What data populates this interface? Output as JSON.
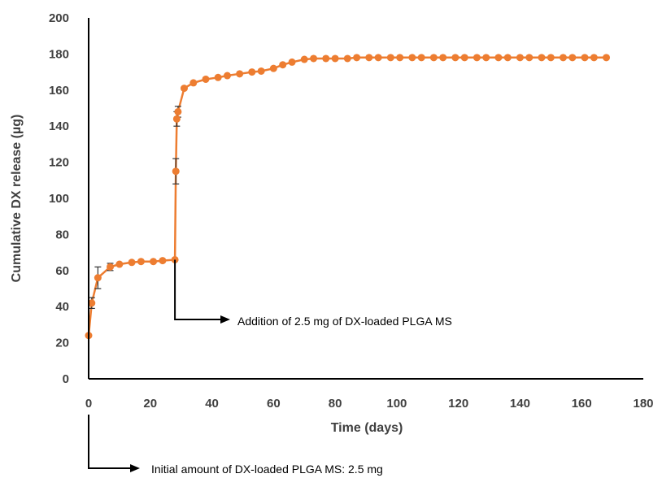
{
  "chart_data": {
    "type": "scatter",
    "title": "",
    "xlabel": "Time (days)",
    "ylabel": "Cumulative DX release (µg)",
    "xlim": [
      0,
      180
    ],
    "ylim": [
      0,
      200
    ],
    "xticks": [
      0,
      20,
      40,
      60,
      80,
      100,
      120,
      140,
      160,
      180
    ],
    "yticks": [
      0,
      20,
      40,
      60,
      80,
      100,
      120,
      140,
      160,
      180,
      200
    ],
    "grid": false,
    "color": "#ED7D31",
    "series": [
      {
        "x": [
          0,
          1,
          3,
          7,
          10,
          14,
          17,
          21,
          24,
          28,
          28.3,
          28.6,
          29,
          31,
          34,
          38,
          42,
          45,
          49,
          53,
          56,
          60,
          63,
          66,
          70,
          73,
          77,
          80,
          84,
          87,
          91,
          94,
          98,
          101,
          105,
          108,
          112,
          115,
          119,
          122,
          126,
          129,
          133,
          136,
          140,
          143,
          147,
          150,
          154,
          157,
          161,
          164,
          168
        ],
        "y": [
          24,
          42,
          56,
          62,
          63.5,
          64.5,
          65,
          65,
          65.5,
          66,
          115,
          144,
          148,
          161,
          164,
          166,
          167,
          168,
          169,
          170,
          170.5,
          172,
          174,
          175.5,
          177,
          177.5,
          177.5,
          177.5,
          177.5,
          178,
          178,
          178,
          178,
          178,
          178,
          178,
          178,
          178,
          178,
          178,
          178,
          178,
          178,
          178,
          178,
          178,
          178,
          178,
          178,
          178,
          178,
          178,
          178
        ],
        "error_bars": [
          {
            "x": 1,
            "y": 42,
            "err": 3
          },
          {
            "x": 3,
            "y": 56,
            "err": 6
          },
          {
            "x": 7,
            "y": 62,
            "err": 2
          },
          {
            "x": 28.3,
            "y": 115,
            "err": 7
          },
          {
            "x": 28.6,
            "y": 144,
            "err": 4
          },
          {
            "x": 29,
            "y": 148,
            "err": 3
          }
        ]
      }
    ],
    "annotations": [
      {
        "text": "Addition of 2.5 mg of DX-loaded PLGA MS",
        "x": 28
      },
      {
        "text": "Initial amount of DX-loaded PLGA MS: 2.5 mg",
        "x": 0
      }
    ]
  }
}
